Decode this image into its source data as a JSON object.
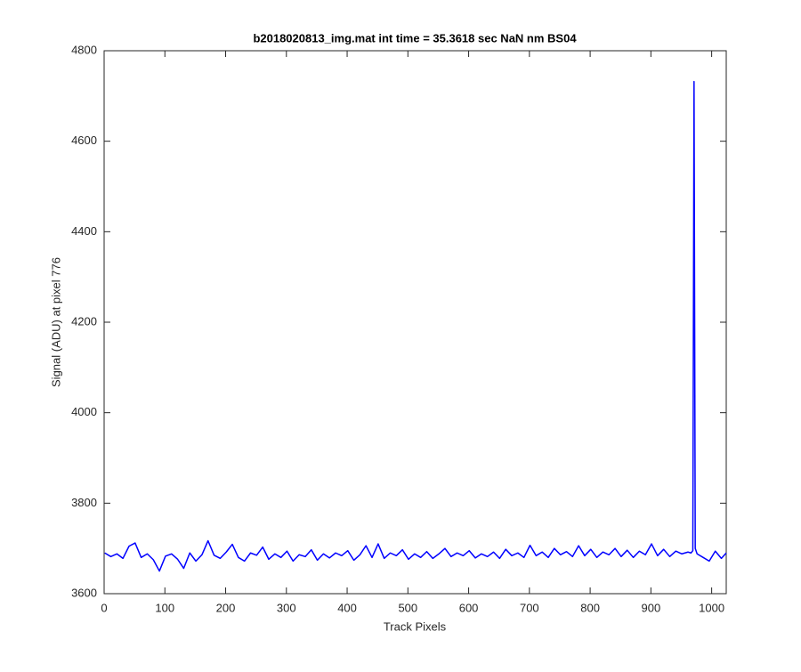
{
  "chart_data": {
    "type": "line",
    "title": "b2018020813_img.mat int time = 35.3618 sec  NaN nm BS04",
    "xlabel": "Track Pixels",
    "ylabel": "Signal (ADU) at pixel 776",
    "x": [
      1,
      11,
      21,
      31,
      41,
      51,
      61,
      71,
      81,
      91,
      101,
      111,
      121,
      131,
      141,
      151,
      161,
      171,
      181,
      191,
      201,
      211,
      221,
      231,
      241,
      251,
      261,
      271,
      281,
      291,
      301,
      311,
      321,
      331,
      341,
      351,
      361,
      371,
      381,
      391,
      401,
      411,
      421,
      431,
      441,
      451,
      461,
      471,
      481,
      491,
      501,
      511,
      521,
      531,
      541,
      551,
      561,
      571,
      581,
      591,
      601,
      611,
      621,
      631,
      641,
      651,
      661,
      671,
      681,
      691,
      701,
      711,
      721,
      731,
      741,
      751,
      761,
      771,
      781,
      791,
      801,
      811,
      821,
      831,
      841,
      851,
      861,
      871,
      881,
      891,
      901,
      911,
      921,
      931,
      941,
      951,
      961,
      966,
      969,
      971,
      973,
      976,
      986,
      996,
      1006,
      1016,
      1024
    ],
    "series": [
      {
        "color": "#0000ff",
        "values": [
          3690,
          3682,
          3688,
          3678,
          3705,
          3712,
          3680,
          3688,
          3675,
          3650,
          3683,
          3688,
          3676,
          3656,
          3690,
          3672,
          3686,
          3717,
          3685,
          3678,
          3692,
          3709,
          3680,
          3672,
          3690,
          3685,
          3703,
          3676,
          3688,
          3680,
          3694,
          3672,
          3686,
          3682,
          3697,
          3674,
          3688,
          3679,
          3690,
          3684,
          3695,
          3674,
          3686,
          3706,
          3680,
          3710,
          3678,
          3690,
          3684,
          3697,
          3676,
          3688,
          3680,
          3693,
          3678,
          3688,
          3700,
          3682,
          3690,
          3684,
          3695,
          3679,
          3688,
          3682,
          3692,
          3678,
          3698,
          3684,
          3690,
          3680,
          3707,
          3684,
          3692,
          3680,
          3700,
          3686,
          3693,
          3682,
          3706,
          3684,
          3698,
          3680,
          3692,
          3686,
          3700,
          3682,
          3696,
          3680,
          3694,
          3686,
          3710,
          3684,
          3698,
          3682,
          3694,
          3688,
          3692,
          3690,
          3695,
          4732,
          3700,
          3688,
          3680,
          3672,
          3694,
          3678,
          3690
        ]
      }
    ],
    "xlim": [
      0,
      1024
    ],
    "ylim": [
      3600,
      4800
    ],
    "xticks": [
      0,
      100,
      200,
      300,
      400,
      500,
      600,
      700,
      800,
      900,
      1000
    ],
    "yticks": [
      3600,
      3800,
      4000,
      4200,
      4400,
      4600,
      4800
    ]
  }
}
